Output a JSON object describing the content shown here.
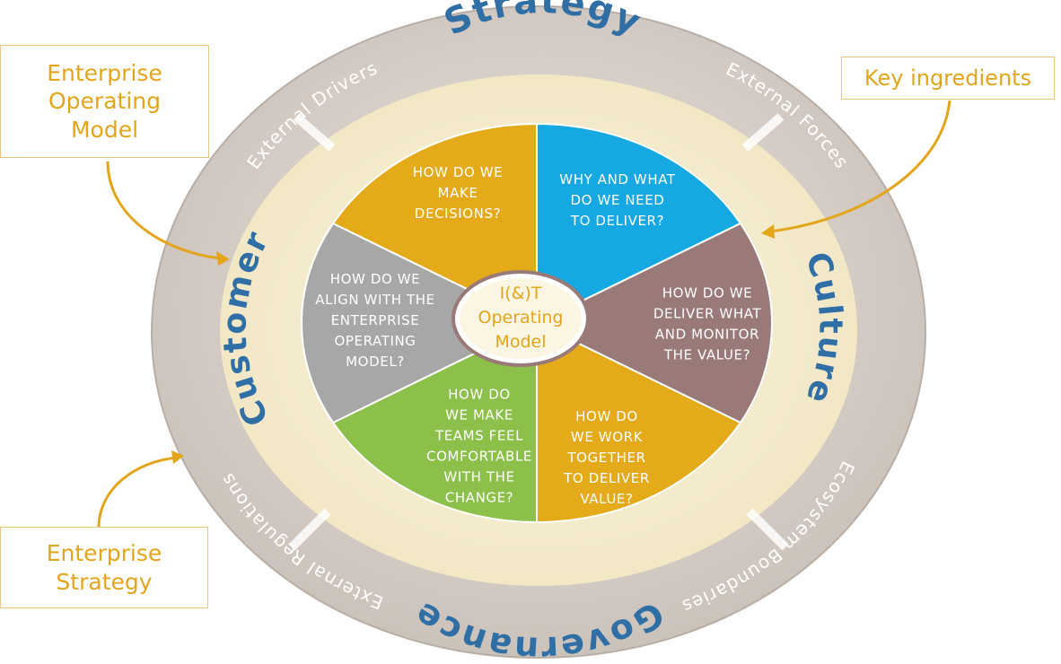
{
  "callouts": {
    "enterprise_operating_model": [
      "Enterprise",
      "Operating",
      "Model"
    ],
    "key_ingredients": "Key ingredients",
    "enterprise_strategy": [
      "Enterprise",
      "Strategy"
    ]
  },
  "outer_ring": {
    "top_left": "External Drivers",
    "top_right": "External Forces",
    "bottom_left": "External Regulations",
    "bottom_right": "Ecosystem Boundaries"
  },
  "middle_ring": {
    "top": "Strategy",
    "right": "Culture",
    "bottom": "Governance",
    "left": "Customer"
  },
  "center": [
    "I(&)T",
    "Operating",
    "Model"
  ],
  "segments": [
    {
      "lines": [
        "WHY AND WHAT",
        "DO WE NEED",
        "TO DELIVER?"
      ],
      "color": "#16a8e2"
    },
    {
      "lines": [
        "HOW DO WE",
        "DELIVER WHAT",
        "AND MONITOR",
        "THE VALUE?"
      ],
      "color": "#9a7a78"
    },
    {
      "lines": [
        "HOW DO",
        "WE WORK",
        "TOGETHER",
        "TO DELIVER",
        "VALUE?"
      ],
      "color": "#e4aa19"
    },
    {
      "lines": [
        "HOW DO",
        "WE MAKE",
        "TEAMS FEEL",
        "COMFORTABLE",
        "WITH THE",
        "CHANGE?"
      ],
      "color": "#8cc04a"
    },
    {
      "lines": [
        "HOW DO WE",
        "ALIGN WITH THE",
        "ENTERPRISE",
        "OPERATING",
        "MODEL?"
      ],
      "color": "#a7a7a7"
    },
    {
      "lines": [
        "HOW DO WE",
        "MAKE",
        "DECISIONS?"
      ],
      "color": "#e4aa19"
    }
  ],
  "colors": {
    "accent": "#e3a51a",
    "ring_word": "#2f6fa5",
    "outer_ring": "#d7cfc8",
    "middle_ring": "#f7efd3"
  }
}
